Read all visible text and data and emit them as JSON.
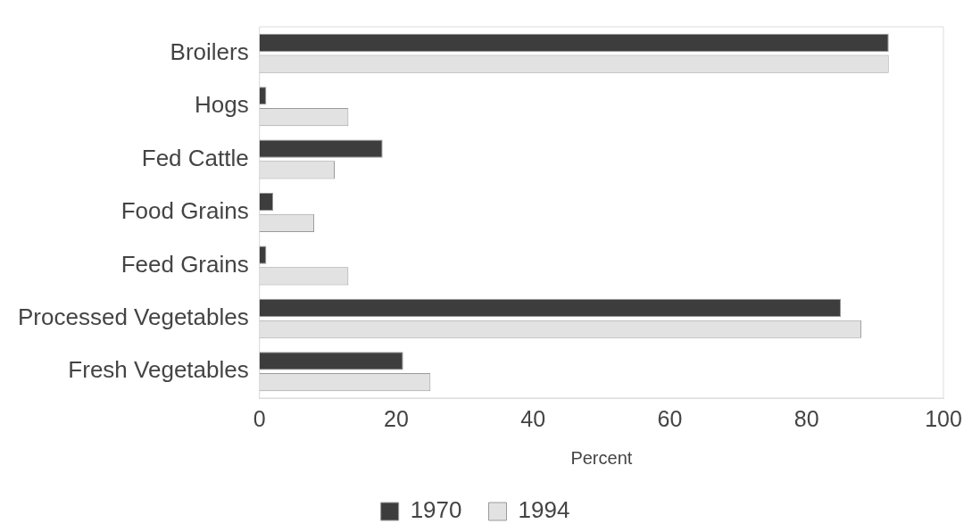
{
  "chart_data": {
    "type": "bar",
    "orientation": "horizontal",
    "xlabel": "Percent",
    "categories": [
      "Broilers",
      "Hogs",
      "Fed Cattle",
      "Food Grains",
      "Feed Grains",
      "Processed Vegetables",
      "Fresh Vegetables"
    ],
    "series": [
      {
        "name": "1970",
        "color": "#3d3d3d",
        "values": [
          92,
          1,
          18,
          2,
          1,
          85,
          21
        ]
      },
      {
        "name": "1994",
        "color": "#e2e2e2",
        "values": [
          92,
          13,
          11,
          8,
          13,
          88,
          25
        ]
      }
    ],
    "xlim": [
      0,
      100
    ],
    "xticks": [
      0,
      20,
      40,
      60,
      80,
      100
    ],
    "grid": false,
    "legend": "bottom"
  }
}
